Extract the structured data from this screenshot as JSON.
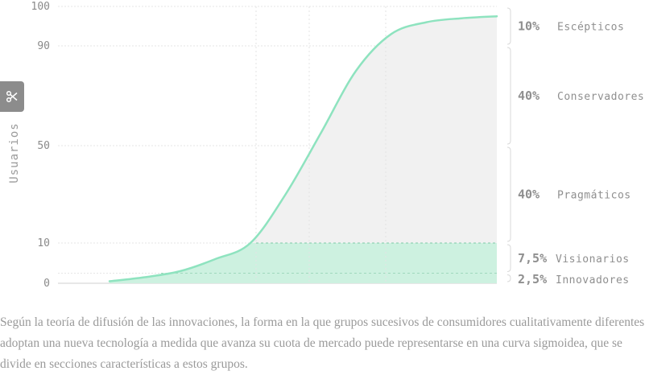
{
  "chart_data": {
    "type": "line",
    "ylabel": "Usuarios",
    "xlabel": "",
    "title": "",
    "ylim": [
      0,
      100
    ],
    "yticks": [
      0,
      10,
      50,
      90,
      100
    ],
    "grid": true,
    "series": [
      {
        "values": [
          0.5,
          1.5,
          3,
          6,
          10,
          30,
          55,
          80,
          93,
          96,
          97,
          97.5
        ]
      }
    ],
    "segments": [
      {
        "percent": "10%",
        "name": "Escépticos",
        "from": 90,
        "to": 100
      },
      {
        "percent": "40%",
        "name": "Conservadores",
        "from": 50,
        "to": 90
      },
      {
        "percent": "40%",
        "name": "Pragmáticos",
        "from": 10,
        "to": 50
      },
      {
        "percent": "7,5%",
        "name": "Visionarios",
        "from": 2.5,
        "to": 10
      },
      {
        "percent": "2,5%",
        "name": "Innovadores",
        "from": 0,
        "to": 2.5
      }
    ],
    "colors": {
      "curve": "#8ee3bf",
      "green_fill": "#cdf1e0",
      "grey_fill": "#f1f1f1",
      "grid": "#e6e6e6",
      "text": "#8f8f8f"
    }
  },
  "toolbar": {
    "scissors_icon": "scissors-icon"
  },
  "caption": "Según la teoría de difusión de las innovaciones, la forma en la que grupos sucesivos de consumidores cualitativamente diferentes adoptan una nueva tecnología a medida que avanza su cuota de mercado puede representarse en una curva sigmoidea, que se divide en secciones características a estos grupos."
}
